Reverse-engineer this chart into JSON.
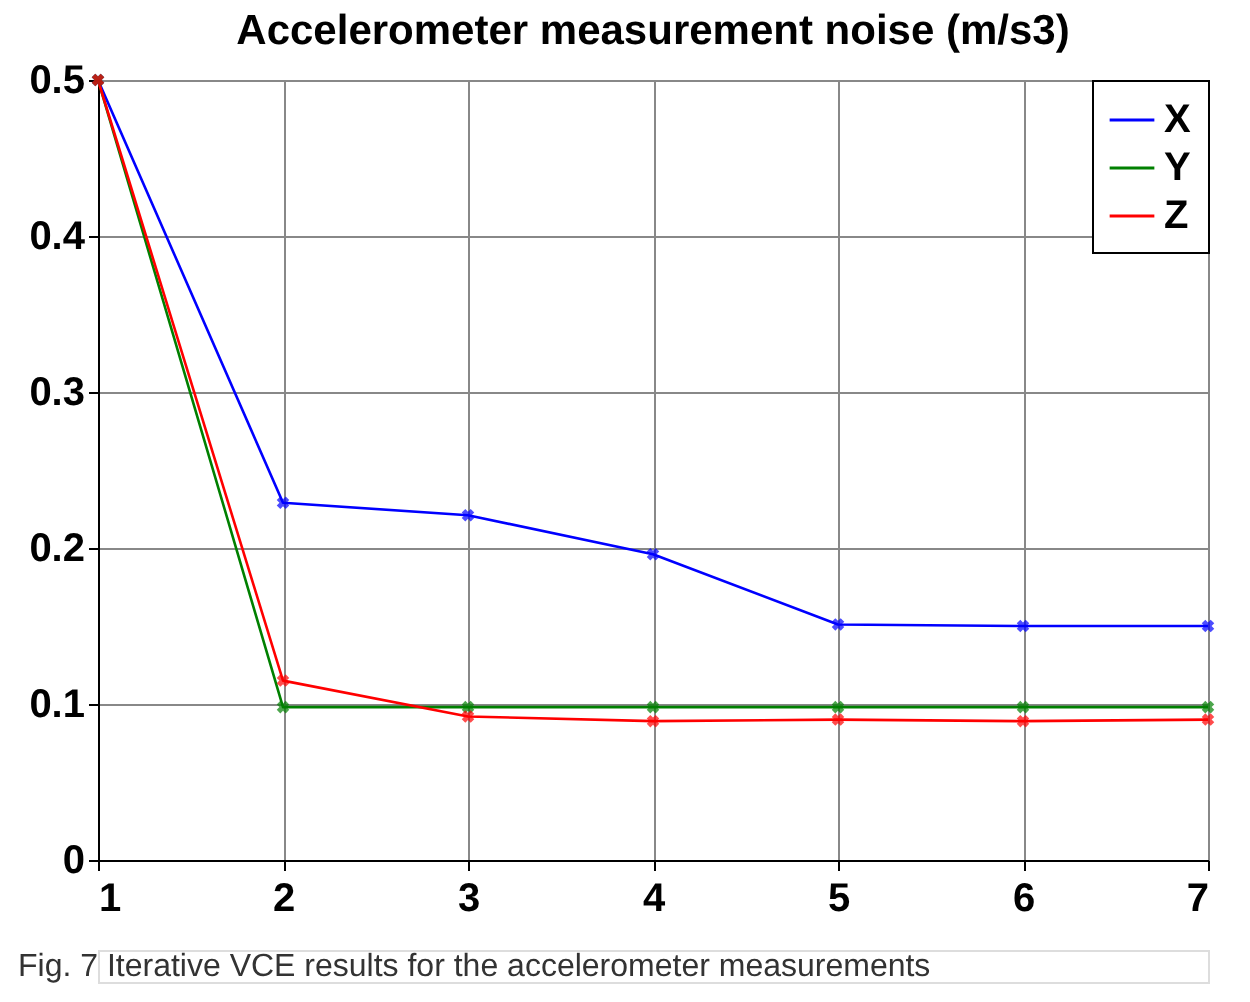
{
  "chart_data": {
    "type": "line",
    "title": "Accelerometer measurement noise (m/s3)",
    "x": [
      1,
      2,
      3,
      4,
      5,
      6,
      7
    ],
    "series": [
      {
        "name": "X",
        "color": "#0000ff",
        "values": [
          0.5,
          0.229,
          0.221,
          0.196,
          0.151,
          0.15,
          0.15
        ]
      },
      {
        "name": "Y",
        "color": "#008000",
        "values": [
          0.5,
          0.098,
          0.098,
          0.098,
          0.098,
          0.098,
          0.098
        ]
      },
      {
        "name": "Z",
        "color": "#ff0000",
        "values": [
          0.5,
          0.115,
          0.092,
          0.089,
          0.09,
          0.089,
          0.09
        ]
      }
    ],
    "xlim": [
      1,
      7
    ],
    "xticks": [
      1,
      2,
      3,
      4,
      5,
      6,
      7
    ],
    "ylim": [
      0,
      0.5
    ],
    "yticks": [
      0,
      0.1,
      0.2,
      0.3,
      0.4,
      0.5
    ],
    "grid": true,
    "legend": "top right",
    "marker": "cross",
    "line_style": "solid",
    "annotations": [
      "Fig. 7 Iterative VCE results for the accelerometer measurements"
    ]
  }
}
